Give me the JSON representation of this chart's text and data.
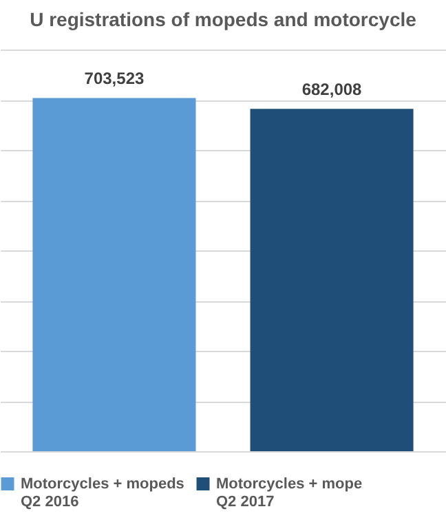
{
  "chart_data": {
    "type": "bar",
    "title": "U registrations of mopeds and motorcycle",
    "categories": [
      null
    ],
    "series": [
      {
        "name": "Motorcycles + mopeds Q2 2016",
        "color": "#5b9bd5",
        "values": [
          703523
        ],
        "value_labels": [
          "703,523"
        ]
      },
      {
        "name": "Motorcycles + mope Q2 2017",
        "color": "#1f4e79",
        "values": [
          682008
        ],
        "value_labels": [
          "682,008"
        ]
      }
    ],
    "grid": "y",
    "legend": "bottom",
    "tick_labels": false
  }
}
